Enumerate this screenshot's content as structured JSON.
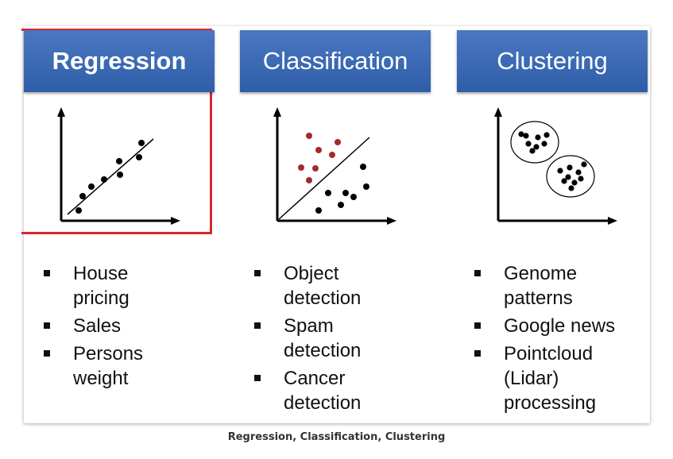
{
  "columns": [
    {
      "title": "Regression",
      "items": [
        "House pricing",
        "Sales",
        "Persons weight"
      ]
    },
    {
      "title": "Classification",
      "items": [
        "Object detection",
        "Spam detection",
        "Cancer detection"
      ]
    },
    {
      "title": "Clustering",
      "items": [
        "Genome patterns",
        "Google news",
        "Pointcloud (Lidar) processing"
      ]
    }
  ],
  "caption": "Regression, Classification, Clustering",
  "colors": {
    "header": "#3a68b6",
    "highlight": "#d9272e",
    "red_points": "#a52a2a",
    "black_points": "#000000"
  }
}
